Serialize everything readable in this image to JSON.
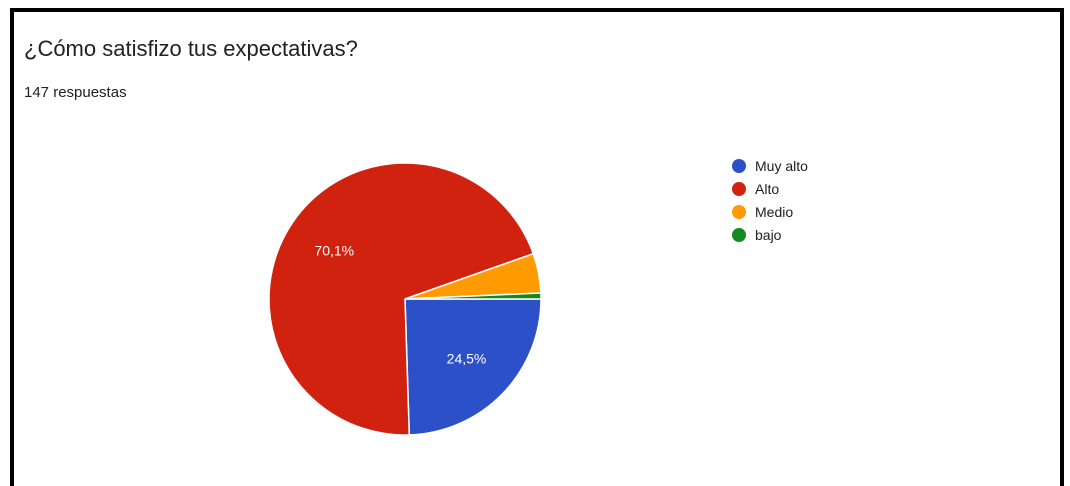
{
  "chart_data": {
    "type": "pie",
    "title": "¿Cómo satisfizo tus expectativas?",
    "subtitle": "147 respuestas",
    "slices": [
      {
        "label": "Muy alto",
        "value": 24.5,
        "color": "#2b50c8",
        "data_label": "24,5%"
      },
      {
        "label": "Alto",
        "value": 70.1,
        "color": "#d0220f",
        "data_label": "70,1%"
      },
      {
        "label": "Medio",
        "value": 4.7,
        "color": "#ff9a00",
        "data_label": ""
      },
      {
        "label": "bajo",
        "value": 0.7,
        "color": "#118a1f",
        "data_label": ""
      }
    ],
    "legend_position": "right"
  }
}
